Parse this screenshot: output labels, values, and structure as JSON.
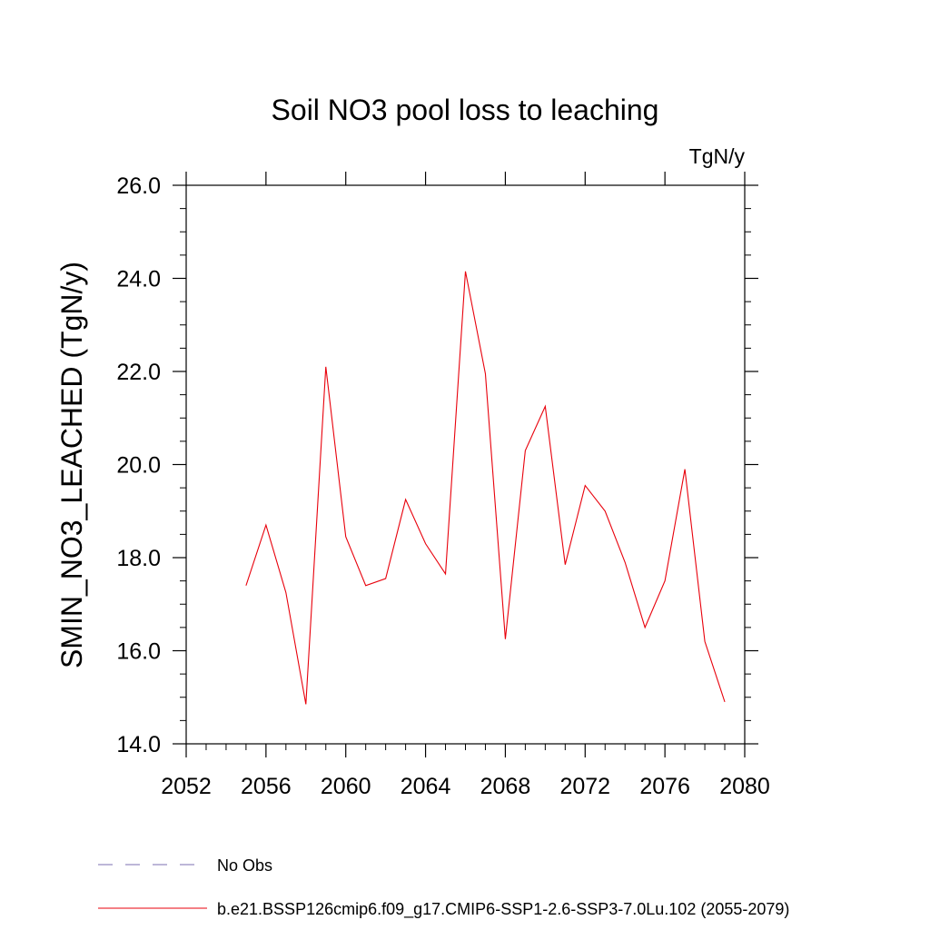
{
  "chart_data": {
    "type": "line",
    "title": "Soil NO3 pool loss to leaching",
    "units_label": "TgN/y",
    "ylabel": "SMIN_NO3_LEACHED  (TgN/y)",
    "xlabel": "",
    "xlim": [
      2052,
      2080
    ],
    "ylim": [
      14.0,
      26.0
    ],
    "x_ticks": [
      2052,
      2056,
      2060,
      2064,
      2068,
      2072,
      2076,
      2080
    ],
    "x_tick_labels": [
      "2052",
      "2056",
      "2060",
      "2064",
      "2068",
      "2072",
      "2076",
      "2080"
    ],
    "y_ticks": [
      14,
      16,
      18,
      20,
      22,
      24,
      26
    ],
    "y_tick_labels": [
      "14.0",
      "16.0",
      "18.0",
      "20.0",
      "22.0",
      "24.0",
      "26.0"
    ],
    "grid": false,
    "legend_position": "bottom-left",
    "series": [
      {
        "name": "b.e21.BSSP126cmip6.f09_g17.CMIP6-SSP1-2.6-SSP3-7.0Lu.102 (2055-2079)",
        "color": "#e8000b",
        "x": [
          2055,
          2056,
          2057,
          2058,
          2059,
          2060,
          2061,
          2062,
          2063,
          2064,
          2065,
          2066,
          2067,
          2068,
          2069,
          2070,
          2071,
          2072,
          2073,
          2074,
          2075,
          2076,
          2077,
          2078,
          2079
        ],
        "values": [
          17.4,
          18.7,
          17.25,
          14.85,
          22.1,
          18.45,
          17.4,
          17.55,
          19.25,
          18.3,
          17.65,
          24.15,
          21.95,
          16.25,
          20.3,
          21.25,
          17.85,
          19.55,
          19.0,
          17.9,
          16.5,
          17.5,
          19.9,
          16.2,
          14.9
        ]
      }
    ],
    "legend": [
      {
        "label": "No Obs",
        "style": "dashed",
        "color": "#7b6fb0"
      },
      {
        "label": "b.e21.BSSP126cmip6.f09_g17.CMIP6-SSP1-2.6-SSP3-7.0Lu.102 (2055-2079)",
        "style": "solid",
        "color": "#e8000b"
      }
    ]
  }
}
